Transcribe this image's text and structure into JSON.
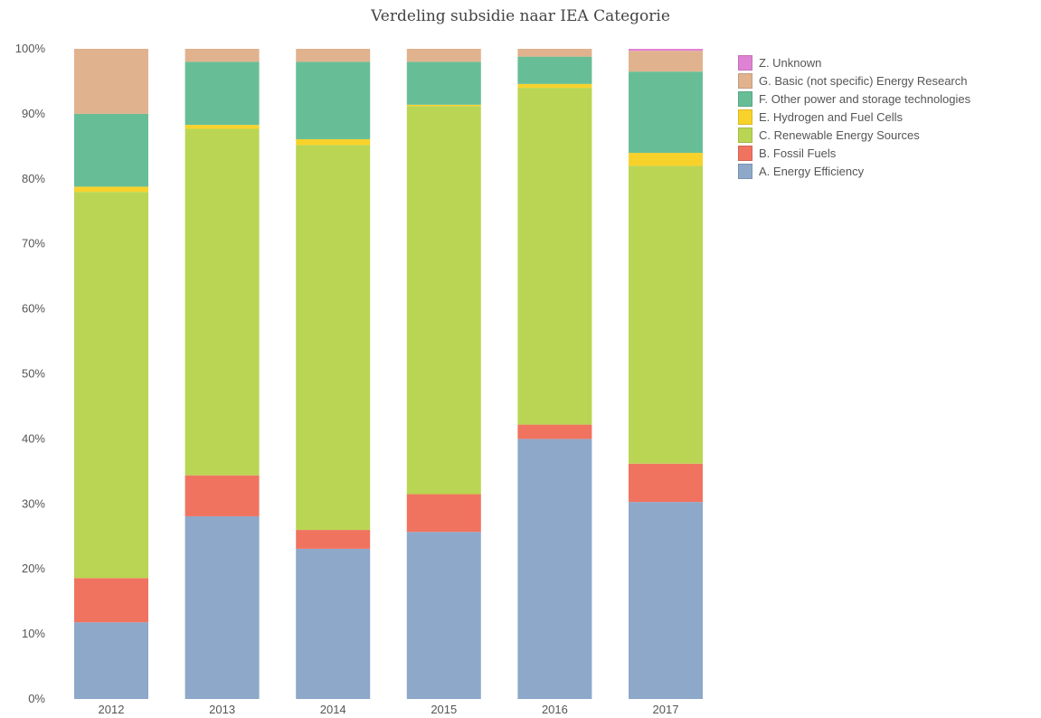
{
  "chart_data": {
    "type": "bar",
    "stacked": true,
    "title": "Verdeling subsidie naar IEA Categorie",
    "categories": [
      "2012",
      "2013",
      "2014",
      "2015",
      "2016",
      "2017"
    ],
    "y_ticks": [
      "0%",
      "10%",
      "20%",
      "30%",
      "40%",
      "50%",
      "60%",
      "70%",
      "80%",
      "90%",
      "100%"
    ],
    "ylim": [
      0,
      100
    ],
    "y_unit": "%",
    "grid": false,
    "legend_position": "top-right",
    "series": [
      {
        "name": "A. Energy Efficiency",
        "color": "#8da8c9",
        "values": [
          11.8,
          28.1,
          23.1,
          25.7,
          40.0,
          30.3
        ]
      },
      {
        "name": "B. Fossil Fuels",
        "color": "#f07360",
        "values": [
          6.8,
          6.3,
          2.9,
          5.8,
          2.2,
          5.9
        ]
      },
      {
        "name": "C. Renewable Energy Sources",
        "color": "#bad553",
        "values": [
          59.4,
          53.3,
          59.2,
          59.7,
          51.8,
          45.8
        ]
      },
      {
        "name": "E. Hydrogen and Fuel Cells",
        "color": "#f8d22b",
        "values": [
          0.8,
          0.6,
          0.9,
          0.2,
          0.6,
          2.0
        ]
      },
      {
        "name": "F. Other power and storage technologies",
        "color": "#67be96",
        "values": [
          11.2,
          9.7,
          11.9,
          6.6,
          4.2,
          12.5
        ]
      },
      {
        "name": "G. Basic (not specific) Energy Research",
        "color": "#e0b28e",
        "values": [
          10.0,
          2.0,
          2.0,
          2.0,
          1.2,
          3.2
        ]
      },
      {
        "name": "Z. Unknown",
        "color": "#e082d4",
        "values": [
          0,
          0,
          0,
          0,
          0,
          0.3
        ]
      }
    ]
  }
}
